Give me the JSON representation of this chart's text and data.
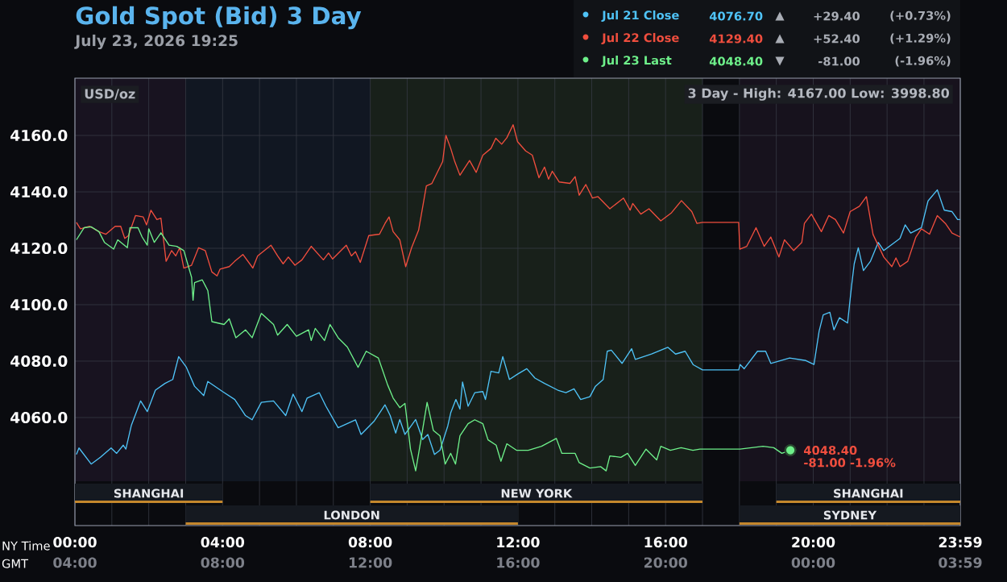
{
  "chart_data": {
    "type": "line",
    "title": "Gold Spot (Bid) 3 Day",
    "subtitle": "July 23, 2026 19:25",
    "xlabel": "NY Time",
    "x2label": "GMT",
    "xlim": [
      0,
      23.983
    ],
    "x2lim": [
      "2026-07-23T04:00",
      "2026-07-24T03:59"
    ],
    "ylim": [
      4021.7,
      4180.3
    ],
    "xticks": [
      {
        "value": 0,
        "label": "00:00"
      },
      {
        "value": 1,
        "label": null
      },
      {
        "value": 2,
        "label": null
      },
      {
        "value": 3,
        "label": null
      },
      {
        "value": 4,
        "label": "04:00"
      },
      {
        "value": 5,
        "label": null
      },
      {
        "value": 6,
        "label": null
      },
      {
        "value": 7,
        "label": null
      },
      {
        "value": 8,
        "label": "08:00"
      },
      {
        "value": 9,
        "label": null
      },
      {
        "value": 10,
        "label": null
      },
      {
        "value": 11,
        "label": null
      },
      {
        "value": 12,
        "label": "12:00"
      },
      {
        "value": 13,
        "label": null
      },
      {
        "value": 14,
        "label": null
      },
      {
        "value": 15,
        "label": null
      },
      {
        "value": 16,
        "label": "16:00"
      },
      {
        "value": 17,
        "label": null
      },
      {
        "value": 18,
        "label": null
      },
      {
        "value": 19,
        "label": null
      },
      {
        "value": 20,
        "label": "20:00"
      },
      {
        "value": 21,
        "label": null
      },
      {
        "value": 22,
        "label": null
      },
      {
        "value": 23,
        "label": null
      },
      {
        "value": 23.983,
        "label": "23:59"
      }
    ],
    "x2ticks": [
      {
        "value": "2026-07-23T04:00",
        "label": "04:00"
      },
      {
        "value": "2026-07-23T08:00",
        "label": "08:00"
      },
      {
        "value": "2026-07-23T12:00",
        "label": "12:00"
      },
      {
        "value": "2026-07-23T16:00",
        "label": "16:00"
      },
      {
        "value": "2026-07-23T20:00",
        "label": "20:00"
      },
      {
        "value": "2026-07-24T00:00",
        "label": "00:00"
      },
      {
        "value": "2026-07-24T03:59",
        "label": "03:59"
      }
    ],
    "yticks": [
      {
        "value": 4060,
        "label": "4060.0"
      },
      {
        "value": 4080,
        "label": "4080.0"
      },
      {
        "value": 4100,
        "label": "4100.0"
      },
      {
        "value": 4120,
        "label": "4120.0"
      },
      {
        "value": 4140,
        "label": "4140.0"
      },
      {
        "value": 4160,
        "label": "4160.0"
      }
    ],
    "grid": true,
    "legend": "top right",
    "line_style": "solid",
    "series": [
      {
        "name": "Jul 21 Close",
        "color": "#4fc3f7",
        "x": [
          0.04,
          0.11,
          0.44,
          0.69,
          0.98,
          1.13,
          1.31,
          1.38,
          1.53,
          1.78,
          1.96,
          2.18,
          2.44,
          2.65,
          2.81,
          3.02,
          3.24,
          3.49,
          3.6,
          4.0,
          4.33,
          4.62,
          4.8,
          5.05,
          5.38,
          5.71,
          5.91,
          6.15,
          6.29,
          6.62,
          6.8,
          7.13,
          7.6,
          7.75,
          8.11,
          8.4,
          8.54,
          8.69,
          8.8,
          8.94,
          9.23,
          9.42,
          9.56,
          9.74,
          9.89,
          10.1,
          10.18,
          10.32,
          10.43,
          10.5,
          10.65,
          10.83,
          11.05,
          11.12,
          11.27,
          11.48,
          11.59,
          11.77,
          11.99,
          12.24,
          12.46,
          12.72,
          13.08,
          13.3,
          13.52,
          13.7,
          13.95,
          14.1,
          14.31,
          14.42,
          14.53,
          14.82,
          15.08,
          15.18,
          15.62,
          16.06,
          16.27,
          16.53,
          16.75,
          17.0,
          17.98,
          18.02,
          18.13,
          18.49,
          18.71,
          18.85,
          19.36,
          19.8,
          20.02,
          20.16,
          20.27,
          20.45,
          20.56,
          20.71,
          20.93,
          21.04,
          21.11,
          21.22,
          21.36,
          21.55,
          21.76,
          21.91,
          22.35,
          22.49,
          22.64,
          22.93,
          23.11,
          23.36,
          23.55,
          23.76,
          23.91,
          23.98
        ],
        "values": [
          4046.9,
          4049.2,
          4043.5,
          4045.9,
          4049.2,
          4047.3,
          4050.2,
          4048.8,
          4057.3,
          4065.9,
          4062.1,
          4069.7,
          4072.1,
          4073.5,
          4081.6,
          4077.8,
          4071.1,
          4067.8,
          4072.8,
          4069.2,
          4066.4,
          4060.7,
          4059.2,
          4065.4,
          4065.9,
          4060.7,
          4068.3,
          4062.1,
          4066.9,
          4068.8,
          4064.0,
          4056.4,
          4059.2,
          4054.0,
          4058.8,
          4064.5,
          4060.7,
          4054.5,
          4059.3,
          4054.0,
          4059.3,
          4052.2,
          4054.0,
          4046.9,
          4048.4,
          4057.0,
          4061.7,
          4066.4,
          4063.0,
          4072.6,
          4064.0,
          4068.8,
          4069.2,
          4066.4,
          4076.4,
          4075.8,
          4081.6,
          4073.5,
          4075.4,
          4077.3,
          4074.0,
          4072.1,
          4069.7,
          4068.8,
          4070.2,
          4066.4,
          4067.4,
          4071.1,
          4073.5,
          4083.5,
          4083.9,
          4079.2,
          4084.4,
          4080.6,
          4082.5,
          4084.9,
          4082.5,
          4083.5,
          4078.7,
          4076.9,
          4076.9,
          4078.8,
          4077.3,
          4083.5,
          4083.5,
          4079.2,
          4081.1,
          4080.2,
          4078.8,
          4090.7,
          4096.4,
          4097.3,
          4091.1,
          4095.4,
          4093.5,
          4106.9,
          4114.5,
          4120.2,
          4112.1,
          4115.4,
          4122.1,
          4119.2,
          4123.5,
          4128.3,
          4125.4,
          4127.3,
          4136.8,
          4140.7,
          4133.5,
          4133.0,
          4130.2,
          4130.2
        ]
      },
      {
        "name": "Jul 22 Close",
        "color": "#f04e3e",
        "x": [
          0.04,
          0.15,
          0.4,
          0.65,
          0.84,
          1.09,
          1.24,
          1.35,
          1.45,
          1.64,
          1.85,
          1.94,
          2.06,
          2.22,
          2.33,
          2.47,
          2.62,
          2.73,
          2.84,
          2.95,
          3.16,
          3.35,
          3.53,
          3.71,
          3.85,
          3.93,
          4.18,
          4.33,
          4.55,
          4.82,
          4.95,
          5.31,
          5.49,
          5.64,
          5.78,
          5.96,
          6.15,
          6.4,
          6.73,
          6.87,
          6.98,
          7.35,
          7.49,
          7.6,
          7.73,
          7.96,
          8.25,
          8.4,
          8.51,
          8.62,
          8.8,
          8.96,
          9.12,
          9.31,
          9.52,
          9.67,
          9.85,
          9.96,
          10.05,
          10.18,
          10.29,
          10.43,
          10.69,
          10.87,
          11.05,
          11.27,
          11.4,
          11.56,
          11.7,
          11.87,
          11.99,
          12.21,
          12.39,
          12.57,
          12.72,
          12.83,
          12.93,
          13.12,
          13.41,
          13.55,
          13.66,
          13.84,
          14.02,
          14.17,
          14.49,
          14.86,
          15.04,
          15.11,
          15.33,
          15.55,
          15.87,
          16.16,
          16.43,
          16.71,
          16.85,
          17.0,
          17.98,
          18.01,
          18.2,
          18.45,
          18.67,
          18.85,
          19.07,
          19.22,
          19.47,
          19.69,
          19.76,
          19.95,
          20.22,
          20.42,
          20.6,
          20.82,
          21.0,
          21.25,
          21.44,
          21.62,
          21.91,
          22.13,
          22.24,
          22.35,
          22.56,
          22.78,
          22.93,
          23.15,
          23.36,
          23.58,
          23.76,
          23.98
        ],
        "values": [
          4129.2,
          4126.9,
          4127.8,
          4125.9,
          4125.0,
          4127.8,
          4127.8,
          4123.5,
          4124.5,
          4131.6,
          4131.1,
          4128.3,
          4133.5,
          4130.2,
          4130.7,
          4115.4,
          4119.2,
          4117.3,
          4120.2,
          4113.0,
          4114.0,
          4120.2,
          4119.2,
          4111.6,
          4110.2,
          4112.6,
          4113.5,
          4115.4,
          4117.8,
          4113.0,
          4117.3,
          4121.1,
          4117.3,
          4114.5,
          4116.9,
          4114.0,
          4115.9,
          4120.7,
          4115.9,
          4118.3,
          4116.2,
          4121.1,
          4117.3,
          4118.8,
          4115.0,
          4124.5,
          4125.0,
          4128.8,
          4131.1,
          4125.9,
          4123.0,
          4113.5,
          4120.2,
          4126.4,
          4142.1,
          4143.0,
          4147.8,
          4150.7,
          4160.0,
          4155.4,
          4150.7,
          4145.9,
          4151.1,
          4146.9,
          4153.0,
          4155.4,
          4159.0,
          4156.9,
          4159.2,
          4163.8,
          4157.8,
          4154.5,
          4153.0,
          4145.0,
          4148.8,
          4144.5,
          4147.3,
          4143.5,
          4143.0,
          4145.4,
          4138.8,
          4142.6,
          4137.8,
          4138.3,
          4134.0,
          4137.8,
          4133.5,
          4135.9,
          4132.1,
          4134.0,
          4129.7,
          4132.6,
          4136.9,
          4133.0,
          4128.8,
          4129.2,
          4129.2,
          4119.7,
          4120.7,
          4127.3,
          4120.7,
          4124.0,
          4116.9,
          4123.0,
          4119.2,
          4122.1,
          4128.8,
          4132.1,
          4125.9,
          4131.6,
          4130.2,
          4125.4,
          4133.0,
          4134.9,
          4138.3,
          4124.9,
          4116.9,
          4113.5,
          4116.6,
          4113.5,
          4115.4,
          4124.0,
          4126.9,
          4125.0,
          4131.6,
          4128.8,
          4125.4,
          4124.0
        ]
      },
      {
        "name": "Jul 23 Last",
        "color": "#6ef08a",
        "x": [
          0.04,
          0.25,
          0.44,
          0.65,
          0.8,
          1.05,
          1.16,
          1.42,
          1.49,
          1.71,
          1.82,
          1.96,
          2.0,
          2.15,
          2.33,
          2.55,
          2.76,
          2.95,
          3.16,
          3.2,
          3.24,
          3.45,
          3.6,
          3.71,
          4.04,
          4.18,
          4.36,
          4.62,
          4.8,
          5.05,
          5.38,
          5.49,
          5.75,
          6.0,
          6.33,
          6.4,
          6.51,
          6.76,
          6.91,
          7.13,
          7.38,
          7.67,
          7.89,
          8.22,
          8.33,
          8.47,
          8.62,
          8.8,
          8.94,
          9.09,
          9.23,
          9.38,
          9.54,
          9.71,
          9.89,
          10.03,
          10.18,
          10.31,
          10.43,
          10.65,
          10.83,
          11.05,
          11.19,
          11.41,
          11.54,
          11.7,
          11.96,
          12.28,
          12.64,
          13.04,
          13.19,
          13.55,
          13.66,
          13.95,
          14.24,
          14.39,
          14.49,
          14.79,
          14.97,
          15.18,
          15.47,
          15.76,
          15.87,
          16.13,
          16.42,
          16.74,
          16.93,
          17.0,
          18.02,
          18.64,
          18.93,
          19.15,
          19.38
        ],
        "values": [
          4123.0,
          4127.3,
          4127.6,
          4125.9,
          4122.1,
          4119.7,
          4123.0,
          4120.2,
          4127.3,
          4127.3,
          4124.0,
          4121.1,
          4126.9,
          4122.1,
          4125.5,
          4121.1,
          4120.7,
          4119.2,
          4109.7,
          4101.6,
          4107.8,
          4108.8,
          4105.0,
          4094.0,
          4093.0,
          4095.0,
          4088.3,
          4091.1,
          4088.3,
          4096.9,
          4093.0,
          4089.2,
          4093.0,
          4088.8,
          4091.1,
          4087.3,
          4091.6,
          4087.3,
          4093.0,
          4088.3,
          4085.0,
          4077.8,
          4083.5,
          4081.1,
          4076.9,
          4071.6,
          4066.9,
          4063.5,
          4065.0,
          4048.8,
          4041.1,
          4052.6,
          4065.4,
          4055.4,
          4053.5,
          4043.5,
          4047.3,
          4043.5,
          4053.5,
          4057.8,
          4059.2,
          4057.8,
          4052.1,
          4050.2,
          4044.5,
          4050.7,
          4048.4,
          4048.4,
          4049.8,
          4052.6,
          4047.3,
          4047.3,
          4044.0,
          4042.1,
          4042.6,
          4041.1,
          4046.4,
          4045.9,
          4047.3,
          4043.0,
          4048.8,
          4045.0,
          4049.8,
          4048.4,
          4049.3,
          4048.4,
          4048.8,
          4048.8,
          4048.8,
          4049.8,
          4049.3,
          4047.3,
          4048.4
        ]
      }
    ],
    "bands": [
      {
        "axis": "x",
        "from": 0,
        "to": 3,
        "color": "#181320"
      },
      {
        "axis": "x",
        "from": 3,
        "to": 8,
        "color": "#111722"
      },
      {
        "axis": "x",
        "from": 8,
        "to": 17,
        "color": "#18201a"
      },
      {
        "axis": "x",
        "from": 18,
        "to": 23.983,
        "color": "#17121d"
      },
      {
        "axis": "x",
        "from": 0,
        "to": 4,
        "label": "SHANGHAI",
        "color": "#151920"
      },
      {
        "axis": "x",
        "from": 3,
        "to": 12,
        "label": "LONDON",
        "color": "#151920"
      },
      {
        "axis": "x",
        "from": 8,
        "to": 17,
        "label": "NEW YORK",
        "color": "#151920"
      },
      {
        "axis": "x",
        "from": 19,
        "to": 23.983,
        "label": "SHANGHAI",
        "color": "#151920"
      },
      {
        "axis": "x",
        "from": 18,
        "to": 23.983,
        "label": "SYDNEY",
        "color": "#151920"
      }
    ],
    "annotations": [
      "USD/oz",
      "3 Day - High: 4167.00 Low: 3998.80",
      {
        "text": "4048.40",
        "x": 19.38,
        "y": 4048.4
      },
      {
        "text": "-81.00 -1.96%",
        "x": 19.38,
        "y": 4048.4
      },
      "4076.70",
      "▲",
      "+29.40",
      "(+0.73%)",
      "4129.40",
      "▲",
      "+52.40",
      "(+1.29%)",
      "4048.40",
      "▼",
      "-81.00",
      "(-1.96%)"
    ]
  }
}
